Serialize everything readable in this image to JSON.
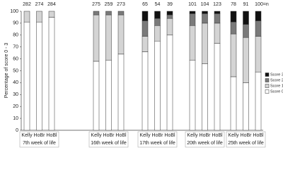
{
  "chart_data": {
    "type": "stacked-bar",
    "y_label": "Percentage of score 0 - 3",
    "categories": [
      "Kelly",
      "HoBr",
      "HoBl",
      "Kelly",
      "HoBr",
      "HoBl",
      "Kelly",
      "HoBr",
      "HoBl",
      "Kelly",
      "HoBr",
      "HoBl",
      "Kelly",
      "HoBr",
      "HoBl"
    ],
    "groups": [
      "7th week of life",
      "16th week of life",
      "17th week of life",
      "20th week of life",
      "25th week of life"
    ],
    "counts": [
      "282",
      "274",
      "284",
      "275",
      "259",
      "273",
      "65",
      "54",
      "39",
      "101",
      "104",
      "123",
      "78",
      "91",
      "100=n"
    ],
    "series": [
      {
        "name": "Score 0",
        "color": "#ffffff",
        "values": [
          91,
          91,
          95,
          58,
          59,
          64,
          66,
          75,
          80,
          59,
          56,
          73,
          45,
          40,
          49
        ]
      },
      {
        "name": "Score 1",
        "color": "#d4d4d4",
        "values": [
          9,
          9,
          5,
          39,
          38,
          33,
          13,
          13,
          14,
          29,
          34,
          17,
          36,
          38,
          30
        ]
      },
      {
        "name": "Score 2",
        "color": "#7a7a7a",
        "values": [
          0,
          0,
          0,
          3,
          3,
          3,
          13,
          6,
          3,
          10,
          8,
          8,
          10,
          11,
          13
        ]
      },
      {
        "name": "Score 3",
        "color": "#111111",
        "values": [
          0,
          0,
          0,
          0,
          0,
          0,
          8,
          6,
          3,
          2,
          2,
          2,
          9,
          11,
          8
        ]
      }
    ],
    "ylim": [
      0,
      100
    ],
    "yticks": [
      0,
      10,
      20,
      30,
      40,
      50,
      60,
      70,
      80,
      90,
      100
    ]
  }
}
